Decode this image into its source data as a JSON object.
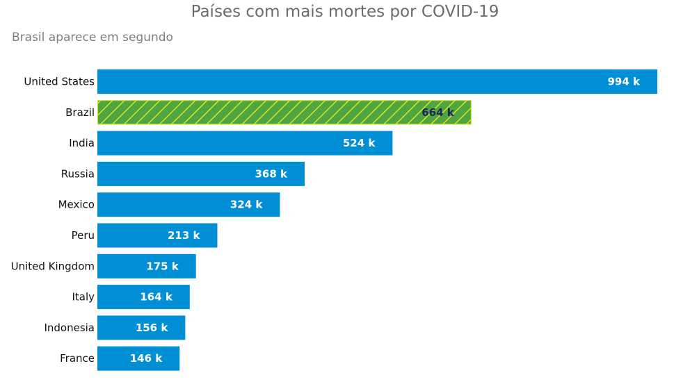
{
  "chart_data": {
    "type": "bar",
    "orientation": "horizontal",
    "title": "Países com mais mortes por COVID-19",
    "subtitle": "Brasil aparece em segundo",
    "categories": [
      "United States",
      "Brazil",
      "India",
      "Russia",
      "Mexico",
      "Peru",
      "United Kingdom",
      "Italy",
      "Indonesia",
      "France"
    ],
    "values": [
      994000,
      664000,
      524000,
      368000,
      324000,
      213000,
      175000,
      164000,
      156000,
      146000
    ],
    "value_labels": [
      "994 k",
      "664 k",
      "524 k",
      "368 k",
      "324 k",
      "213 k",
      "175 k",
      "164 k",
      "156 k",
      "146 k"
    ],
    "xlim": [
      0,
      994000
    ],
    "grid": false,
    "highlight_category": "Brazil",
    "colors": {
      "bar": "#008fd5",
      "highlight_bar": "#4ea541",
      "highlight_hatch": "#d6e41c",
      "label_on_bar": "#ffffff",
      "label_on_highlight": "#1b2a5c"
    }
  }
}
